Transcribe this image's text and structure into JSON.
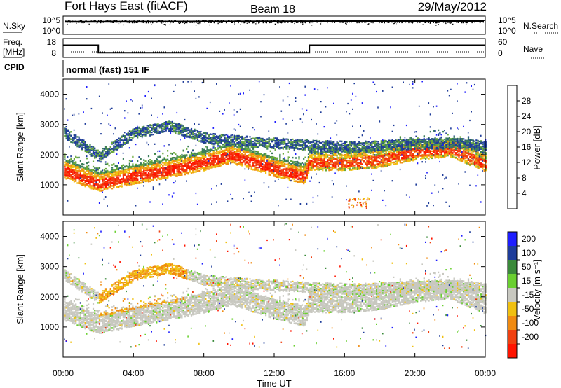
{
  "header": {
    "station": "Fort Hays East (fitACF)",
    "beam": "Beam 18",
    "date": "29/May/2012"
  },
  "noise_panel": {
    "left_label": "N.Sky",
    "right_label": "N.Search",
    "left_ticks": [
      "10^5",
      "10^0"
    ],
    "right_ticks": [
      "10^5",
      "10^0"
    ]
  },
  "freq_panel": {
    "left_label_line1": "Freq.",
    "left_label_line2": "[MHz]",
    "right_label": "Nave",
    "left_ticks": [
      "18",
      "8"
    ],
    "right_ticks": [
      "60",
      "0"
    ],
    "freq_steps": [
      {
        "t_start": 0,
        "t_end": 2,
        "freq": 14.5
      },
      {
        "t_start": 2,
        "t_end": 14,
        "freq": 10.5
      },
      {
        "t_start": 14,
        "t_end": 24,
        "freq": 14.5
      }
    ]
  },
  "cpid": {
    "label": "CPID",
    "mode": "normal (fast) 151 IF"
  },
  "power_panel": {
    "ylabel": "Slant Range [km]",
    "yticks": [
      "1000",
      "2000",
      "3000",
      "4000"
    ],
    "colorbar_label": "Power [dB]",
    "colorbar_ticks": [
      "4",
      "8",
      "12",
      "16",
      "20",
      "24",
      "28"
    ],
    "colors": [
      "#1e1eff",
      "#1e3c9a",
      "#3a7d5a",
      "#6aaa3a",
      "#f0c010",
      "#f08a10",
      "#f04010",
      "#ff1400"
    ]
  },
  "velocity_panel": {
    "ylabel": "Slant Range [km]",
    "yticks": [
      "1000",
      "2000",
      "3000",
      "4000"
    ],
    "colorbar_label": "Velocity [m s⁻¹]",
    "colorbar_ticks": [
      "200",
      "100",
      "50",
      "15",
      "-15",
      "-50",
      "-100",
      "-200"
    ],
    "colors": [
      "#1e1eff",
      "#1e3c9a",
      "#3a8a3a",
      "#6ad030",
      "#c8c8c0",
      "#f0c010",
      "#f08a10",
      "#f04010",
      "#ff1400"
    ]
  },
  "xaxis": {
    "label": "Time UT",
    "ticks": [
      "00:00",
      "04:00",
      "08:00",
      "12:00",
      "16:00",
      "20:00",
      "00:00"
    ]
  },
  "chart_data": [
    {
      "type": "line",
      "name": "noise",
      "x_range_hours": [
        0,
        24
      ],
      "y_scale": "log"
    },
    {
      "type": "line",
      "name": "frequency",
      "x_range_hours": [
        0,
        24
      ],
      "ylim": [
        8,
        18
      ],
      "steps": [
        {
          "t_start": 0,
          "t_end": 2,
          "value": 14.5
        },
        {
          "t_start": 2,
          "t_end": 14,
          "value": 10.5
        },
        {
          "t_start": 14,
          "t_end": 24,
          "value": 14.5
        }
      ]
    },
    {
      "type": "heatmap",
      "name": "power",
      "x_range_hours": [
        0,
        24
      ],
      "ylim": [
        0,
        4500
      ],
      "zlim": [
        0,
        30
      ],
      "main_band_range_km": [
        [
          0,
          1500
        ],
        [
          2,
          1050
        ],
        [
          4,
          1300
        ],
        [
          6,
          1500
        ],
        [
          8,
          1750
        ],
        [
          9.5,
          2000
        ],
        [
          12,
          1550
        ],
        [
          13.7,
          1300
        ],
        [
          14,
          1750
        ],
        [
          16,
          1750
        ],
        [
          18,
          1850
        ],
        [
          20,
          2100
        ],
        [
          22,
          2200
        ],
        [
          24,
          1700
        ]
      ],
      "secondary_band_range_km": [
        [
          0,
          2800
        ],
        [
          2,
          2000
        ],
        [
          4,
          2750
        ],
        [
          6,
          3000
        ],
        [
          8,
          2600
        ],
        [
          10,
          2500
        ],
        [
          14,
          2350
        ],
        [
          17,
          2300
        ],
        [
          20,
          2400
        ],
        [
          23,
          2400
        ],
        [
          24,
          2300
        ]
      ]
    },
    {
      "type": "heatmap",
      "name": "velocity",
      "x_range_hours": [
        0,
        24
      ],
      "ylim": [
        0,
        4500
      ],
      "zlim": [
        -200,
        200
      ]
    }
  ]
}
